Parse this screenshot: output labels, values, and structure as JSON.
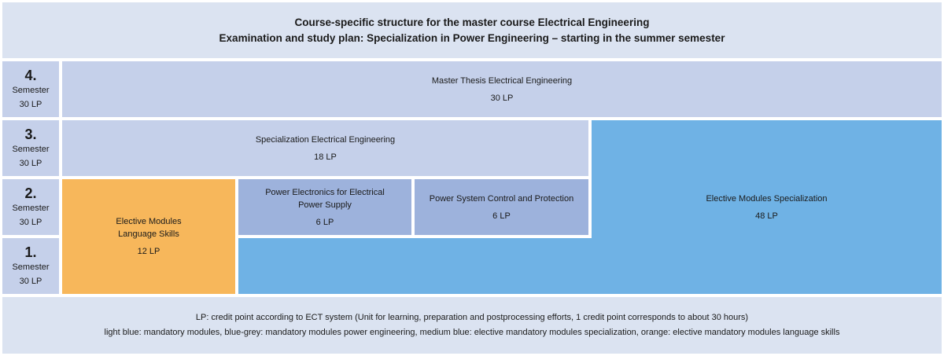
{
  "header": {
    "title_line1": "Course-specific structure for the master course Electrical Engineering",
    "title_line2": "Examination and study plan: Specialization in Power Engineering – starting in the summer semester"
  },
  "semesters": [
    {
      "num": "4.",
      "label": "Semester",
      "lp": "30 LP"
    },
    {
      "num": "3.",
      "label": "Semester",
      "lp": "30 LP"
    },
    {
      "num": "2.",
      "label": "Semester",
      "lp": "30 LP"
    },
    {
      "num": "1.",
      "label": "Semester",
      "lp": "30 LP"
    }
  ],
  "modules": {
    "thesis": {
      "name": "Master Thesis Electrical Engineering",
      "lp": "30 LP"
    },
    "specialization": {
      "name": "Specialization Electrical Engineering",
      "lp": "18 LP"
    },
    "elective_spec": {
      "name": "Elective Modules Specialization",
      "lp": "48 LP"
    },
    "language": {
      "name_line1": "Elective Modules",
      "name_line2": "Language Skills",
      "lp": "12 LP"
    },
    "power_electronics": {
      "name_line1": "Power Electronics for Electrical",
      "name_line2": "Power Supply",
      "lp": "6 LP"
    },
    "power_system": {
      "name": "Power System Control and Protection",
      "lp": "6 LP"
    }
  },
  "footer": {
    "line1": "LP: credit point according to ECT system (Unit for learning, preparation and postprocessing efforts, 1 credit point corresponds to about 30 hours)",
    "line2": "light blue: mandatory modules, blue-grey: mandatory modules power engineering, medium blue: elective mandatory modules specialization, orange: elective mandatory modules language skills"
  },
  "colors": {
    "light_blue": "#c5d0ea",
    "blue_grey": "#9db2dc",
    "medium_blue": "#6fb2e5",
    "orange": "#f7b75b",
    "header_bg": "#dbe3f1"
  }
}
